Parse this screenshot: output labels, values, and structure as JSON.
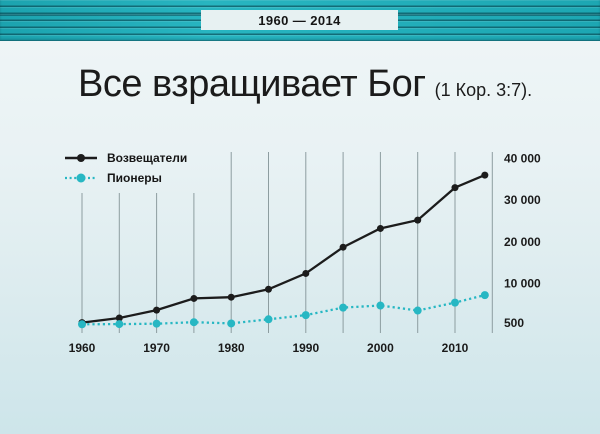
{
  "banner": {
    "date_range": "1960 — 2014"
  },
  "title": {
    "main": "Все взращивает Бог",
    "reference": "(1 Кор. 3:7)."
  },
  "chart_data": {
    "type": "line",
    "title": "Все взращивает Бог (1 Кор. 3:7). 1960 — 2014",
    "x": [
      1960,
      1965,
      1970,
      1975,
      1980,
      1985,
      1990,
      1995,
      2000,
      2005,
      2010,
      2014
    ],
    "series": [
      {
        "name": "Возвещатели",
        "color": "#1c1c1c",
        "line_style": "solid",
        "values": [
          500,
          1600,
          3500,
          6300,
          6600,
          8500,
          12300,
          18600,
          23100,
          25100,
          32900,
          35900
        ]
      },
      {
        "name": "Пионеры",
        "color": "#27b7c3",
        "line_style": "dotted",
        "values": [
          100,
          150,
          250,
          600,
          300,
          1300,
          2300,
          4100,
          4600,
          3400,
          5300,
          7100
        ]
      }
    ],
    "y_ticks": [
      {
        "label": "500",
        "value": 500
      },
      {
        "label": "10 000",
        "value": 10000
      },
      {
        "label": "20 000",
        "value": 20000
      },
      {
        "label": "30 000",
        "value": 30000
      },
      {
        "label": "40 000",
        "value": 40000
      }
    ],
    "x_tick_labels": [
      "1960",
      "1970",
      "1980",
      "1990",
      "2000",
      "2010"
    ],
    "grid_years": [
      1960,
      1965,
      1970,
      1975,
      1980,
      1985,
      1990,
      1995,
      2000,
      2005,
      2010,
      2015
    ],
    "ylim": [
      0,
      40000
    ],
    "grid": "vertical",
    "legend_position": "top-left"
  },
  "colors": {
    "banner_teal": "#1fb2be",
    "accent_teal": "#27b7c3",
    "series_black": "#1c1c1c",
    "background_top": "#f0f6f7",
    "background_bottom": "#cde5ea",
    "gridline": "#8d9da0",
    "text": "#1a1a1a",
    "date_box_bg": "#e7f1f2"
  }
}
